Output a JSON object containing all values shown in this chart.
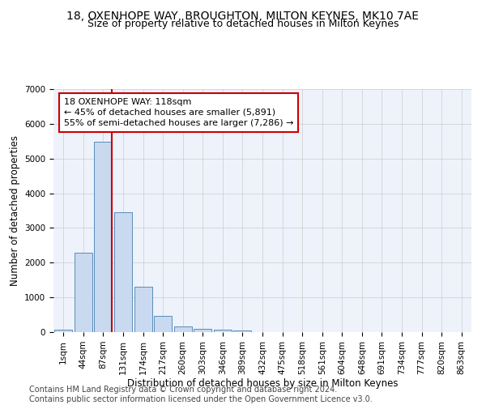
{
  "title_line1": "18, OXENHOPE WAY, BROUGHTON, MILTON KEYNES, MK10 7AE",
  "title_line2": "Size of property relative to detached houses in Milton Keynes",
  "xlabel": "Distribution of detached houses by size in Milton Keynes",
  "ylabel": "Number of detached properties",
  "bar_labels": [
    "1sqm",
    "44sqm",
    "87sqm",
    "131sqm",
    "174sqm",
    "217sqm",
    "260sqm",
    "303sqm",
    "346sqm",
    "389sqm",
    "432sqm",
    "475sqm",
    "518sqm",
    "561sqm",
    "604sqm",
    "648sqm",
    "691sqm",
    "734sqm",
    "777sqm",
    "820sqm",
    "863sqm"
  ],
  "bar_values": [
    75,
    2280,
    5480,
    3450,
    1310,
    470,
    155,
    100,
    65,
    40,
    0,
    0,
    0,
    0,
    0,
    0,
    0,
    0,
    0,
    0,
    0
  ],
  "bar_color": "#c8d9f0",
  "bar_edge_color": "#5b8db8",
  "vline_color": "#cc0000",
  "annotation_text": "18 OXENHOPE WAY: 118sqm\n← 45% of detached houses are smaller (5,891)\n55% of semi-detached houses are larger (7,286) →",
  "annotation_box_color": "#ffffff",
  "annotation_box_edge": "#cc0000",
  "ylim": [
    0,
    7000
  ],
  "yticks": [
    0,
    1000,
    2000,
    3000,
    4000,
    5000,
    6000,
    7000
  ],
  "grid_color": "#cccccc",
  "background_color": "#eef2fb",
  "footer_line1": "Contains HM Land Registry data © Crown copyright and database right 2024.",
  "footer_line2": "Contains public sector information licensed under the Open Government Licence v3.0.",
  "title_fontsize": 10,
  "subtitle_fontsize": 9,
  "axis_label_fontsize": 8.5,
  "tick_fontsize": 7.5,
  "footer_fontsize": 7,
  "annot_fontsize": 8
}
